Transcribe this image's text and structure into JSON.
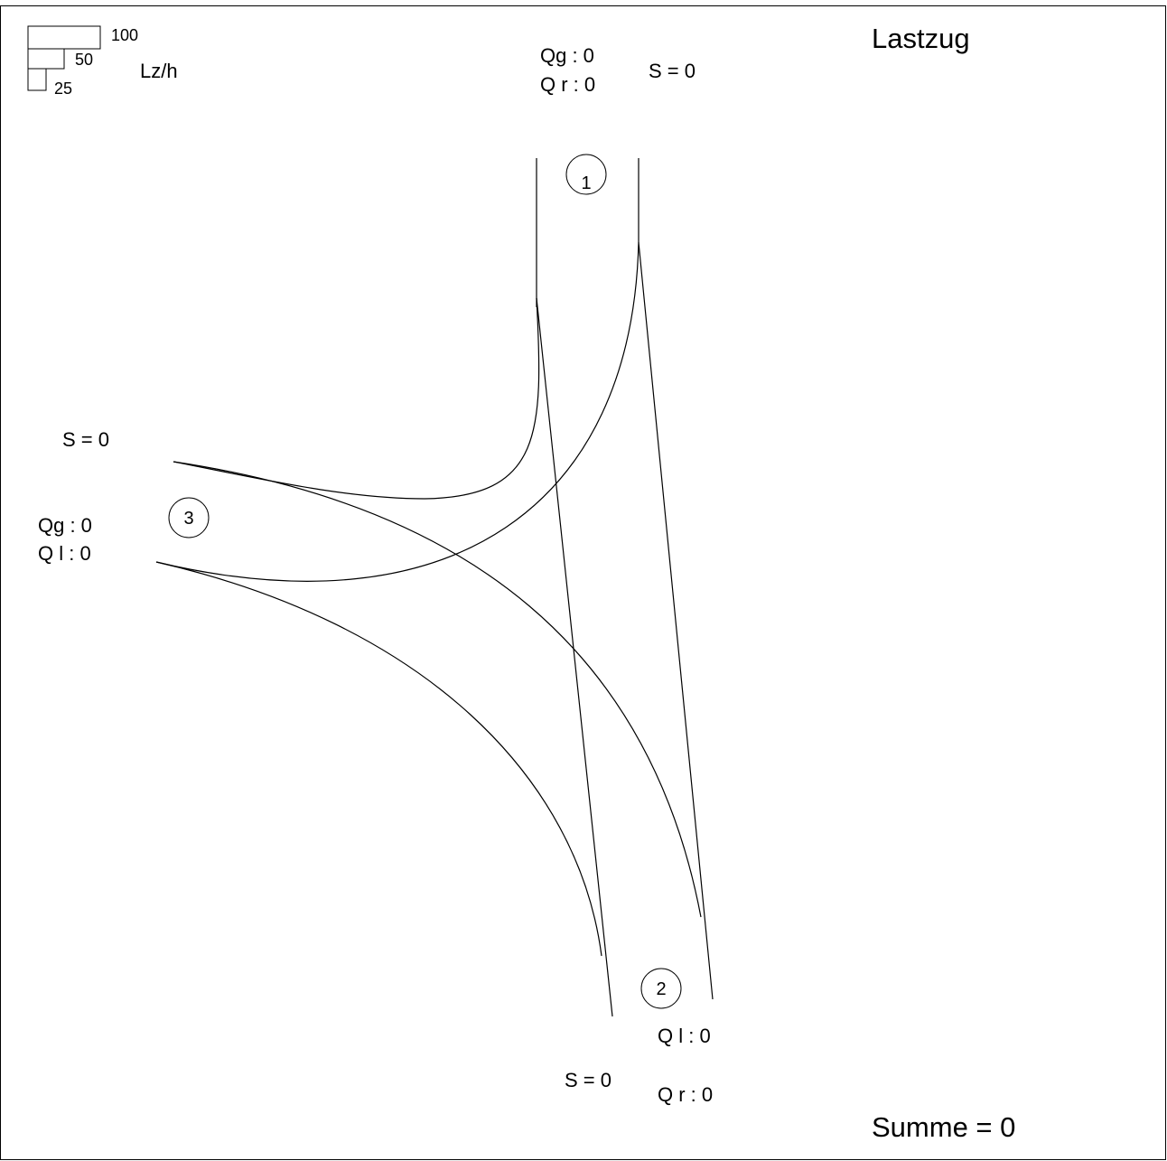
{
  "title": "Lastzug",
  "total": "Summe = 0",
  "legend": {
    "unit": "Lz/h",
    "values": [
      "100",
      "50",
      "25"
    ]
  },
  "approaches": {
    "a1": {
      "node": "1",
      "sum": "S = 0",
      "through": "Qg : 0",
      "right": "Q r : 0"
    },
    "a2": {
      "node": "2",
      "sum": "S = 0",
      "left": "Q l : 0",
      "right": "Q r : 0"
    },
    "a3": {
      "node": "3",
      "sum": "S = 0",
      "through": "Qg : 0",
      "left": "Q l : 0"
    }
  }
}
